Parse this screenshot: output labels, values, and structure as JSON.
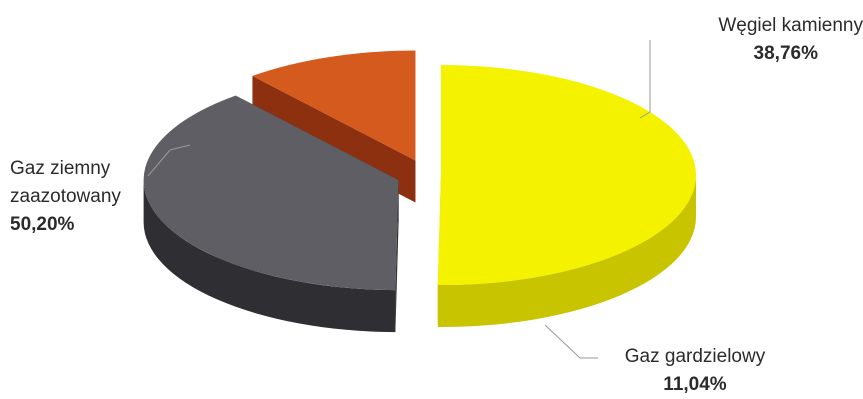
{
  "chart_data": {
    "type": "pie",
    "style": "3d-exploded",
    "slices": [
      {
        "name": "Gaz ziemny zaazotowany",
        "name_lines": [
          "Gaz ziemny",
          "zaazotowany"
        ],
        "value": 50.2,
        "value_label": "50,20%",
        "color": "#f5f200",
        "side_color": "#c9c400"
      },
      {
        "name": "Węgiel kamienny",
        "name_lines": [
          "Węgiel kamienny"
        ],
        "value": 38.76,
        "value_label": "38,76%",
        "color": "#5f5e64",
        "side_color": "#2f2e33"
      },
      {
        "name": "Gaz gardzielowy",
        "name_lines": [
          "Gaz gardzielowy"
        ],
        "value": 11.04,
        "value_label": "11,04%",
        "color": "#d45a1e",
        "side_color": "#8c3010"
      }
    ]
  }
}
